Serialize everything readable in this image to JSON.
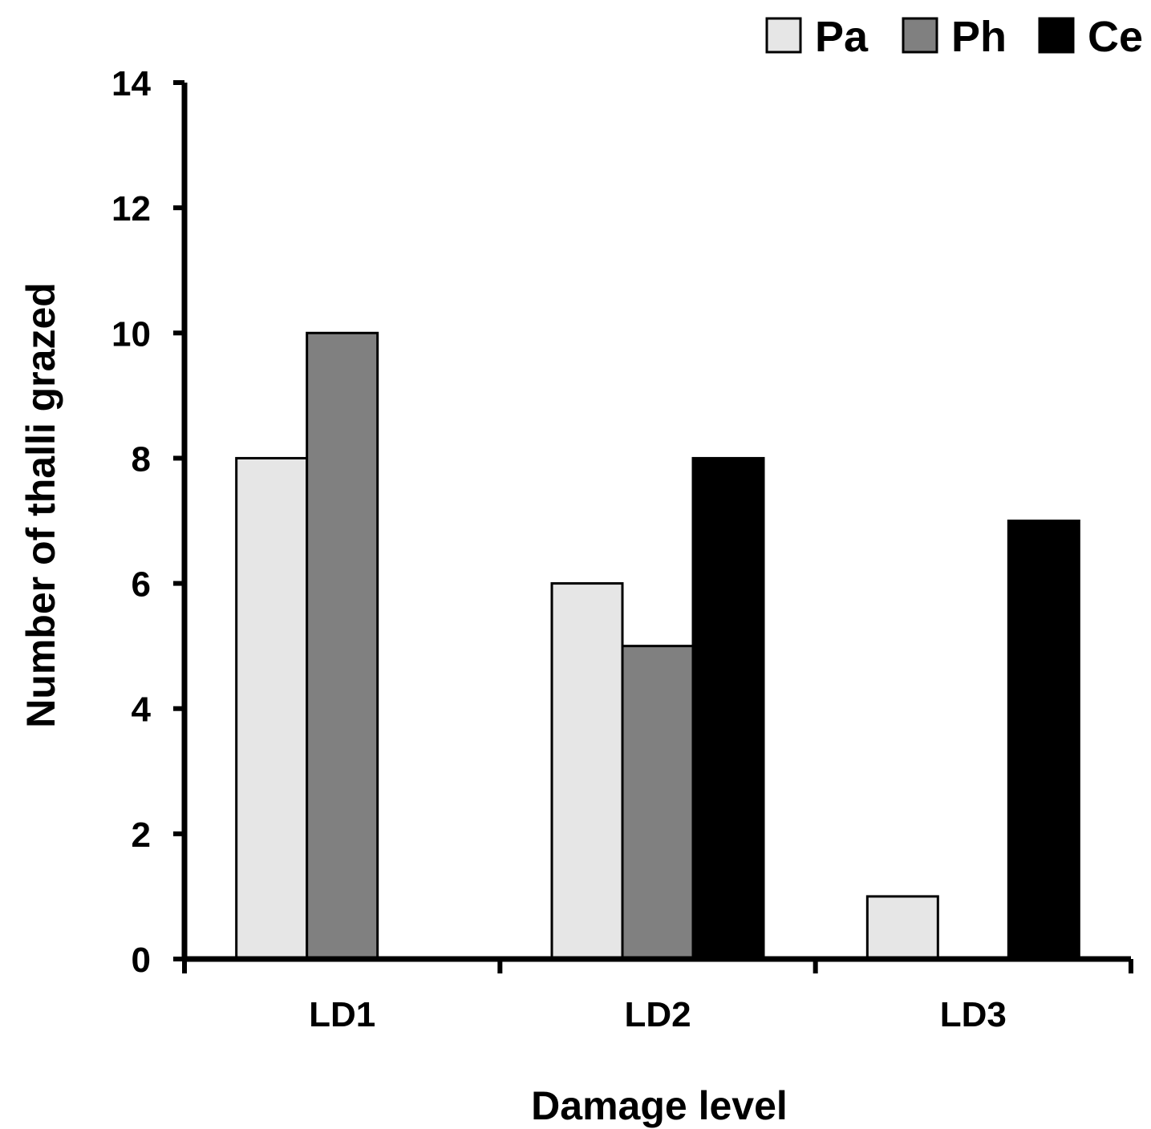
{
  "chart_data": {
    "type": "bar",
    "title": "",
    "xlabel": "Damage level",
    "ylabel": "Number of thalli grazed",
    "categories": [
      "LD1",
      "LD2",
      "LD3"
    ],
    "series": [
      {
        "name": "Pa",
        "values": [
          8,
          6,
          1
        ],
        "color": "#e6e6e6"
      },
      {
        "name": "Ph",
        "values": [
          10,
          5,
          0
        ],
        "color": "#808080"
      },
      {
        "name": "Ce",
        "values": [
          0,
          8,
          7
        ],
        "color": "#000000"
      }
    ],
    "ylim": [
      0,
      14
    ],
    "yticks": [
      0,
      2,
      4,
      6,
      8,
      10,
      12,
      14
    ],
    "grid": false,
    "legend_position": "top-right"
  }
}
